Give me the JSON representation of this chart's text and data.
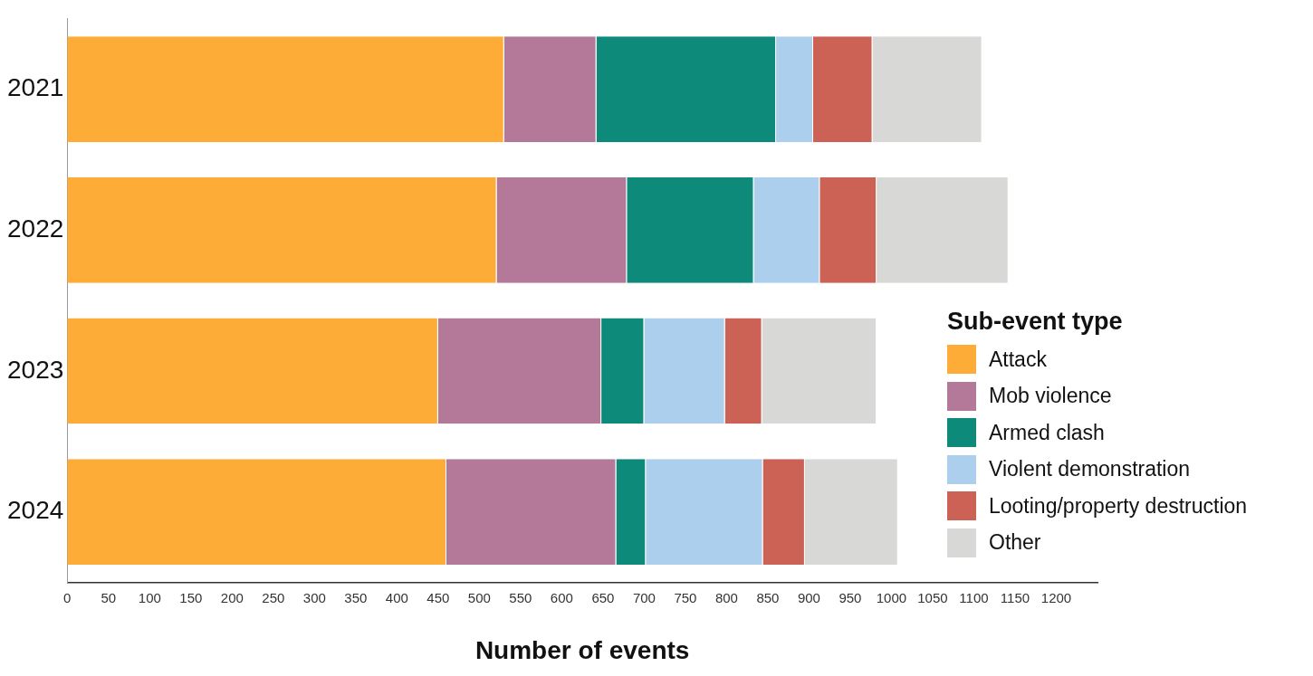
{
  "chart_data": {
    "type": "bar",
    "orientation": "horizontal",
    "stacked": true,
    "categories": [
      "2021",
      "2022",
      "2023",
      "2024"
    ],
    "series": [
      {
        "name": "Attack",
        "color": "#fcac37",
        "values": [
          530,
          521,
          450,
          460
        ]
      },
      {
        "name": "Mob violence",
        "color": "#b47998",
        "values": [
          112,
          158,
          198,
          206
        ]
      },
      {
        "name": "Armed clash",
        "color": "#0e8a7b",
        "values": [
          218,
          154,
          52,
          36
        ]
      },
      {
        "name": "Violent demonstration",
        "color": "#abcfec",
        "values": [
          45,
          80,
          98,
          142
        ]
      },
      {
        "name": "Looting/property destruction",
        "color": "#cc6155",
        "values": [
          72,
          69,
          45,
          51
        ]
      },
      {
        "name": "Other",
        "color": "#d8d9d6",
        "values": [
          133,
          160,
          139,
          113
        ]
      }
    ],
    "xlim": [
      0,
      1250
    ],
    "xticks": [
      0,
      50,
      100,
      150,
      200,
      250,
      300,
      350,
      400,
      450,
      500,
      550,
      600,
      650,
      700,
      750,
      800,
      850,
      900,
      950,
      1000,
      1050,
      1100,
      1150,
      1200
    ],
    "xlabel": "Number of events",
    "legend_title": "Sub-event type",
    "legend": "right",
    "grid": false
  }
}
